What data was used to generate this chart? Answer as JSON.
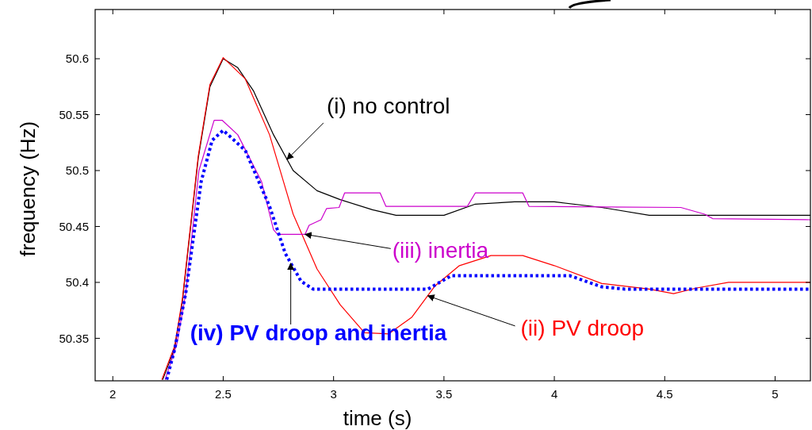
{
  "chart_data": {
    "type": "line",
    "xlabel": "time (s)",
    "ylabel": "frequency (Hz)",
    "xlim": [
      1.92,
      5.16
    ],
    "ylim": [
      50.312,
      50.644
    ],
    "xticks": [
      2,
      2.5,
      3,
      3.5,
      4,
      4.5,
      5
    ],
    "yticks": [
      50.35,
      50.4,
      50.45,
      50.5,
      50.55,
      50.6
    ],
    "grid": false,
    "marker": "none",
    "series": [
      {
        "color": "#000000",
        "line_style": "solid",
        "x": [
          2.226,
          2.28,
          2.315,
          2.387,
          2.44,
          2.5,
          2.566,
          2.638,
          2.728,
          2.817,
          2.925,
          3.03,
          3.176,
          3.283,
          3.5,
          3.642,
          3.82,
          4.0,
          4.215,
          4.43,
          5.16
        ],
        "values": [
          50.313,
          50.341,
          50.383,
          50.511,
          50.575,
          50.6,
          50.592,
          50.571,
          50.532,
          50.5,
          50.482,
          50.474,
          50.465,
          50.46,
          50.46,
          50.47,
          50.472,
          50.472,
          50.467,
          50.46,
          50.46
        ]
      },
      {
        "color": "#ff0000",
        "line_style": "solid",
        "x": [
          2.222,
          2.28,
          2.315,
          2.387,
          2.44,
          2.5,
          2.6,
          2.71,
          2.817,
          2.925,
          3.03,
          3.14,
          3.25,
          3.355,
          3.46,
          3.57,
          3.713,
          3.857,
          4.0,
          4.215,
          4.43,
          4.54,
          4.645,
          4.789,
          5.16
        ],
        "values": [
          50.313,
          50.343,
          50.385,
          50.513,
          50.577,
          50.601,
          50.582,
          50.532,
          50.461,
          50.412,
          50.38,
          50.355,
          50.354,
          50.369,
          50.397,
          50.415,
          50.424,
          50.424,
          50.415,
          50.399,
          50.394,
          50.39,
          50.395,
          50.4,
          50.4
        ]
      },
      {
        "color": "#cc00cc",
        "line_style": "solid",
        "x": [
          2.237,
          2.29,
          2.33,
          2.39,
          2.459,
          2.495,
          2.566,
          2.674,
          2.728,
          2.746,
          2.871,
          2.889,
          2.943,
          2.968,
          3.025,
          3.05,
          3.211,
          3.237,
          3.606,
          3.642,
          3.857,
          3.885,
          4.573,
          4.681,
          4.717,
          5.16
        ],
        "values": [
          50.313,
          50.345,
          50.39,
          50.5,
          50.545,
          50.545,
          50.532,
          50.49,
          50.447,
          50.443,
          50.443,
          50.451,
          50.456,
          50.466,
          50.467,
          50.48,
          50.48,
          50.468,
          50.468,
          50.48,
          50.48,
          50.468,
          50.467,
          50.461,
          50.457,
          50.456
        ]
      },
      {
        "color": "#0000ff",
        "line_style": "dotted",
        "x": [
          2.244,
          2.28,
          2.33,
          2.4,
          2.45,
          2.5,
          2.6,
          2.71,
          2.781,
          2.853,
          2.907,
          3.427,
          3.534,
          4.07,
          4.215,
          4.32,
          5.16
        ],
        "values": [
          50.313,
          50.34,
          50.39,
          50.49,
          50.527,
          50.536,
          50.518,
          50.468,
          50.426,
          50.401,
          50.394,
          50.394,
          50.406,
          50.406,
          50.396,
          50.394,
          50.394
        ]
      }
    ],
    "annotations": [
      {
        "text": "(i) no control",
        "x": 2.789,
        "y": 50.51
      },
      {
        "text": "(ii) PV droop",
        "x": 3.427,
        "y": 50.388
      },
      {
        "text": "(iii) inertia",
        "x": 2.871,
        "y": 50.443
      },
      {
        "text": "(iv) PV droop and inertia",
        "x": 2.806,
        "y": 50.417
      }
    ]
  }
}
